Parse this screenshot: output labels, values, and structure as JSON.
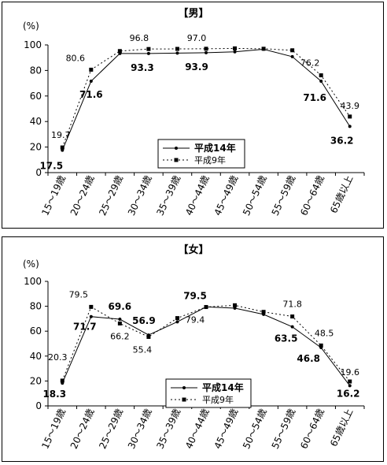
{
  "chart_data": [
    {
      "type": "line",
      "title": "【男】",
      "ylabel": "(%)",
      "ylim": [
        0,
        100
      ],
      "yticks": [
        "0",
        "20",
        "40",
        "60",
        "80",
        "100"
      ],
      "categories": [
        "15～19歳",
        "20～24歳",
        "25～29歳",
        "30～34歳",
        "35～39歳",
        "40～44歳",
        "45～49歳",
        "50～54歳",
        "55～59歳",
        "60～64歳",
        "65歳以上"
      ],
      "series": [
        {
          "name": "平成14年",
          "values": [
            17.5,
            71.6,
            93.3,
            93.3,
            93.6,
            93.9,
            94.6,
            96.6,
            90.8,
            71.6,
            36.2
          ]
        },
        {
          "name": "平成9年",
          "values": [
            19.7,
            80.6,
            95.2,
            96.8,
            96.9,
            97.0,
            97.3,
            97.0,
            95.8,
            76.2,
            43.9
          ]
        }
      ],
      "annotations": [
        {
          "series": 1,
          "point": 0,
          "text": "19.7"
        },
        {
          "series": 0,
          "point": 0,
          "text": "17.5"
        },
        {
          "series": 1,
          "point": 1,
          "text": "80.6"
        },
        {
          "series": 0,
          "point": 1,
          "text": "71.6"
        },
        {
          "series": 0,
          "point": 3,
          "text": "93.3"
        },
        {
          "series": 1,
          "point": 3,
          "text": "96.8"
        },
        {
          "series": 0,
          "point": 5,
          "text": "93.9"
        },
        {
          "series": 1,
          "point": 5,
          "text": "97.0"
        },
        {
          "series": 0,
          "point": 9,
          "text": "71.6"
        },
        {
          "series": 1,
          "point": 9,
          "text": "76.2"
        },
        {
          "series": 1,
          "point": 10,
          "text": "43.9"
        },
        {
          "series": 0,
          "point": 10,
          "text": "36.2"
        }
      ],
      "legend": "bottom-right",
      "grid": false
    },
    {
      "type": "line",
      "title": "【女】",
      "ylabel": "(%)",
      "ylim": [
        0,
        100
      ],
      "yticks": [
        "0",
        "20",
        "40",
        "60",
        "80",
        "100"
      ],
      "categories": [
        "15～19歳",
        "20～24歳",
        "25～29歳",
        "30～34歳",
        "35～39歳",
        "40～44歳",
        "45～49歳",
        "50～54歳",
        "55～59歳",
        "60～64歳",
        "65歳以上"
      ],
      "series": [
        {
          "name": "平成14年",
          "values": [
            18.3,
            71.7,
            69.6,
            56.9,
            67.5,
            79.5,
            78.5,
            73.5,
            63.5,
            46.8,
            16.2
          ]
        },
        {
          "name": "平成9年",
          "values": [
            20.3,
            79.5,
            66.2,
            55.4,
            70.5,
            79.4,
            80.8,
            75.5,
            71.8,
            48.5,
            19.6
          ]
        }
      ],
      "annotations": [
        {
          "series": 1,
          "point": 0,
          "text": "20.3"
        },
        {
          "series": 0,
          "point": 0,
          "text": "18.3"
        },
        {
          "series": 1,
          "point": 1,
          "text": "79.5"
        },
        {
          "series": 0,
          "point": 1,
          "text": "71.7"
        },
        {
          "series": 0,
          "point": 2,
          "text": "69.6"
        },
        {
          "series": 1,
          "point": 2,
          "text": "66.2"
        },
        {
          "series": 0,
          "point": 3,
          "text": "56.9"
        },
        {
          "series": 1,
          "point": 3,
          "text": "55.4"
        },
        {
          "series": 0,
          "point": 5,
          "text": "79.5"
        },
        {
          "series": 1,
          "point": 5,
          "text": "79.4"
        },
        {
          "series": 1,
          "point": 8,
          "text": "71.8"
        },
        {
          "series": 0,
          "point": 8,
          "text": "63.5"
        },
        {
          "series": 1,
          "point": 9,
          "text": "48.5"
        },
        {
          "series": 0,
          "point": 9,
          "text": "46.8"
        },
        {
          "series": 1,
          "point": 10,
          "text": "19.6"
        },
        {
          "series": 0,
          "point": 10,
          "text": "16.2"
        }
      ],
      "legend": "bottom-right",
      "grid": false
    }
  ]
}
